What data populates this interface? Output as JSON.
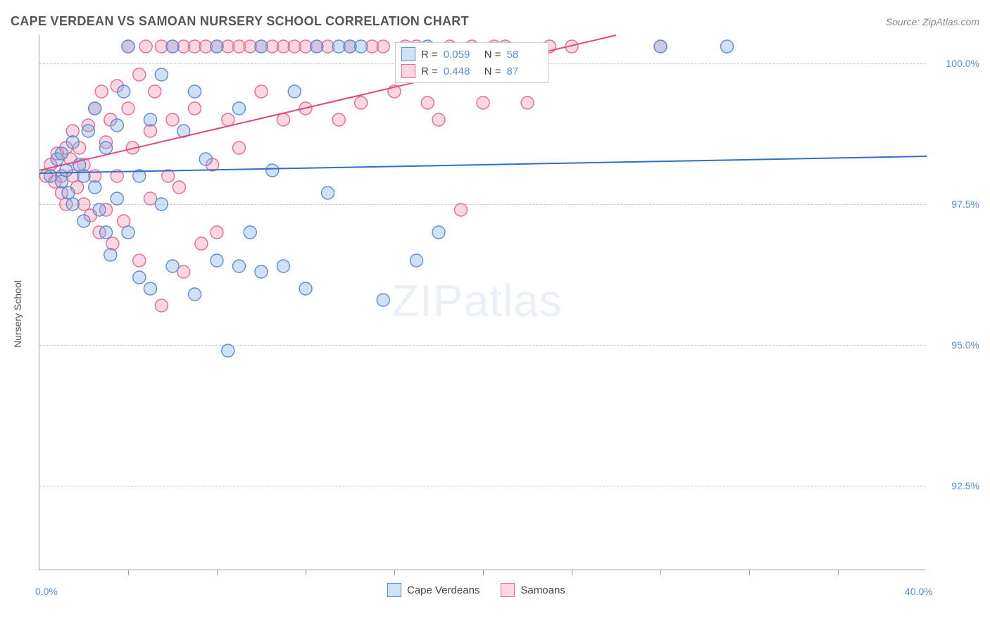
{
  "title": "CAPE VERDEAN VS SAMOAN NURSERY SCHOOL CORRELATION CHART",
  "source": "Source: ZipAtlas.com",
  "ylabel": "Nursery School",
  "watermark_bold": "ZIP",
  "watermark_light": "atlas",
  "chart": {
    "type": "scatter",
    "xlim": [
      0,
      40
    ],
    "ylim": [
      91,
      100.5
    ],
    "x_tick_start": "0.0%",
    "x_tick_end": "40.0%",
    "y_ticks": [
      {
        "v": 92.5,
        "label": "92.5%"
      },
      {
        "v": 95.0,
        "label": "95.0%"
      },
      {
        "v": 97.5,
        "label": "97.5%"
      },
      {
        "v": 100.0,
        "label": "100.0%"
      }
    ],
    "x_minor_ticks": [
      4,
      8,
      12,
      16,
      20,
      24,
      28,
      32,
      36
    ],
    "background_color": "#ffffff",
    "grid_color": "#cccccc",
    "marker_radius": 9,
    "marker_stroke_width": 1.4,
    "line_width": 2,
    "series": [
      {
        "name": "Cape Verdeans",
        "color_fill": "rgba(120,170,225,0.35)",
        "color_stroke": "#5b8dd6",
        "line_color": "#2e70c8",
        "R": "0.059",
        "N": "58",
        "trend": {
          "x1": 0,
          "y1": 98.05,
          "x2": 40,
          "y2": 98.35
        },
        "points": [
          [
            0.5,
            98.0
          ],
          [
            0.8,
            98.3
          ],
          [
            1.0,
            97.9
          ],
          [
            1.0,
            98.4
          ],
          [
            1.2,
            98.1
          ],
          [
            1.3,
            97.7
          ],
          [
            1.5,
            98.6
          ],
          [
            1.5,
            97.5
          ],
          [
            1.8,
            98.2
          ],
          [
            2.0,
            98.0
          ],
          [
            2.0,
            97.2
          ],
          [
            2.2,
            98.8
          ],
          [
            2.5,
            97.8
          ],
          [
            2.5,
            99.2
          ],
          [
            2.7,
            97.4
          ],
          [
            3.0,
            98.5
          ],
          [
            3.0,
            97.0
          ],
          [
            3.2,
            96.6
          ],
          [
            3.5,
            98.9
          ],
          [
            3.5,
            97.6
          ],
          [
            3.8,
            99.5
          ],
          [
            4.0,
            97.0
          ],
          [
            4.0,
            100.3
          ],
          [
            4.5,
            96.2
          ],
          [
            4.5,
            98.0
          ],
          [
            5.0,
            99.0
          ],
          [
            5.0,
            96.0
          ],
          [
            5.5,
            97.5
          ],
          [
            5.5,
            99.8
          ],
          [
            6.0,
            96.4
          ],
          [
            6.0,
            100.3
          ],
          [
            6.5,
            98.8
          ],
          [
            7.0,
            95.9
          ],
          [
            7.0,
            99.5
          ],
          [
            7.5,
            98.3
          ],
          [
            8.0,
            100.3
          ],
          [
            8.0,
            96.5
          ],
          [
            8.5,
            94.9
          ],
          [
            9.0,
            99.2
          ],
          [
            9.0,
            96.4
          ],
          [
            9.5,
            97.0
          ],
          [
            10.0,
            100.3
          ],
          [
            10.0,
            96.3
          ],
          [
            10.5,
            98.1
          ],
          [
            11.0,
            96.4
          ],
          [
            11.5,
            99.5
          ],
          [
            12.0,
            96.0
          ],
          [
            12.5,
            100.3
          ],
          [
            13.0,
            97.7
          ],
          [
            13.5,
            100.3
          ],
          [
            14.0,
            100.3
          ],
          [
            14.5,
            100.3
          ],
          [
            15.5,
            95.8
          ],
          [
            17.0,
            96.5
          ],
          [
            17.5,
            100.3
          ],
          [
            18.0,
            97.0
          ],
          [
            28.0,
            100.3
          ],
          [
            31.0,
            100.3
          ]
        ]
      },
      {
        "name": "Samoans",
        "color_fill": "rgba(240,140,170,0.35)",
        "color_stroke": "#e86b95",
        "line_color": "#e04880",
        "R": "0.448",
        "N": "87",
        "trend": {
          "x1": 0,
          "y1": 98.1,
          "x2": 26,
          "y2": 100.5
        },
        "points": [
          [
            0.3,
            98.0
          ],
          [
            0.5,
            98.2
          ],
          [
            0.7,
            97.9
          ],
          [
            0.8,
            98.4
          ],
          [
            1.0,
            98.0
          ],
          [
            1.0,
            97.7
          ],
          [
            1.2,
            98.5
          ],
          [
            1.2,
            97.5
          ],
          [
            1.4,
            98.3
          ],
          [
            1.5,
            98.0
          ],
          [
            1.5,
            98.8
          ],
          [
            1.7,
            97.8
          ],
          [
            1.8,
            98.5
          ],
          [
            2.0,
            98.2
          ],
          [
            2.0,
            97.5
          ],
          [
            2.2,
            98.9
          ],
          [
            2.3,
            97.3
          ],
          [
            2.5,
            99.2
          ],
          [
            2.5,
            98.0
          ],
          [
            2.7,
            97.0
          ],
          [
            2.8,
            99.5
          ],
          [
            3.0,
            98.6
          ],
          [
            3.0,
            97.4
          ],
          [
            3.2,
            99.0
          ],
          [
            3.3,
            96.8
          ],
          [
            3.5,
            99.6
          ],
          [
            3.5,
            98.0
          ],
          [
            3.8,
            97.2
          ],
          [
            4.0,
            99.2
          ],
          [
            4.0,
            100.3
          ],
          [
            4.2,
            98.5
          ],
          [
            4.5,
            99.8
          ],
          [
            4.5,
            96.5
          ],
          [
            4.8,
            100.3
          ],
          [
            5.0,
            98.8
          ],
          [
            5.0,
            97.6
          ],
          [
            5.2,
            99.5
          ],
          [
            5.5,
            100.3
          ],
          [
            5.5,
            95.7
          ],
          [
            5.8,
            98.0
          ],
          [
            6.0,
            99.0
          ],
          [
            6.0,
            100.3
          ],
          [
            6.3,
            97.8
          ],
          [
            6.5,
            100.3
          ],
          [
            6.5,
            96.3
          ],
          [
            7.0,
            99.2
          ],
          [
            7.0,
            100.3
          ],
          [
            7.3,
            96.8
          ],
          [
            7.5,
            100.3
          ],
          [
            7.8,
            98.2
          ],
          [
            8.0,
            100.3
          ],
          [
            8.0,
            97.0
          ],
          [
            8.5,
            99.0
          ],
          [
            8.5,
            100.3
          ],
          [
            9.0,
            100.3
          ],
          [
            9.0,
            98.5
          ],
          [
            9.5,
            100.3
          ],
          [
            10.0,
            99.5
          ],
          [
            10.0,
            100.3
          ],
          [
            10.5,
            100.3
          ],
          [
            11.0,
            99.0
          ],
          [
            11.0,
            100.3
          ],
          [
            11.5,
            100.3
          ],
          [
            12.0,
            100.3
          ],
          [
            12.0,
            99.2
          ],
          [
            12.5,
            100.3
          ],
          [
            13.0,
            100.3
          ],
          [
            13.5,
            99.0
          ],
          [
            14.0,
            100.3
          ],
          [
            14.5,
            99.3
          ],
          [
            15.0,
            100.3
          ],
          [
            15.5,
            100.3
          ],
          [
            16.0,
            99.5
          ],
          [
            16.5,
            100.3
          ],
          [
            17.0,
            100.3
          ],
          [
            17.5,
            99.3
          ],
          [
            18.0,
            99.0
          ],
          [
            18.5,
            100.3
          ],
          [
            19.0,
            97.4
          ],
          [
            19.5,
            100.3
          ],
          [
            20.0,
            99.3
          ],
          [
            20.5,
            100.3
          ],
          [
            21.0,
            100.3
          ],
          [
            22.0,
            99.3
          ],
          [
            23.0,
            100.3
          ],
          [
            24.0,
            100.3
          ],
          [
            28.0,
            100.3
          ]
        ]
      }
    ]
  },
  "legend_top": {
    "r_prefix": "R =",
    "n_prefix": "N ="
  },
  "legend_bottom": {
    "items": [
      "Cape Verdeans",
      "Samoans"
    ]
  }
}
